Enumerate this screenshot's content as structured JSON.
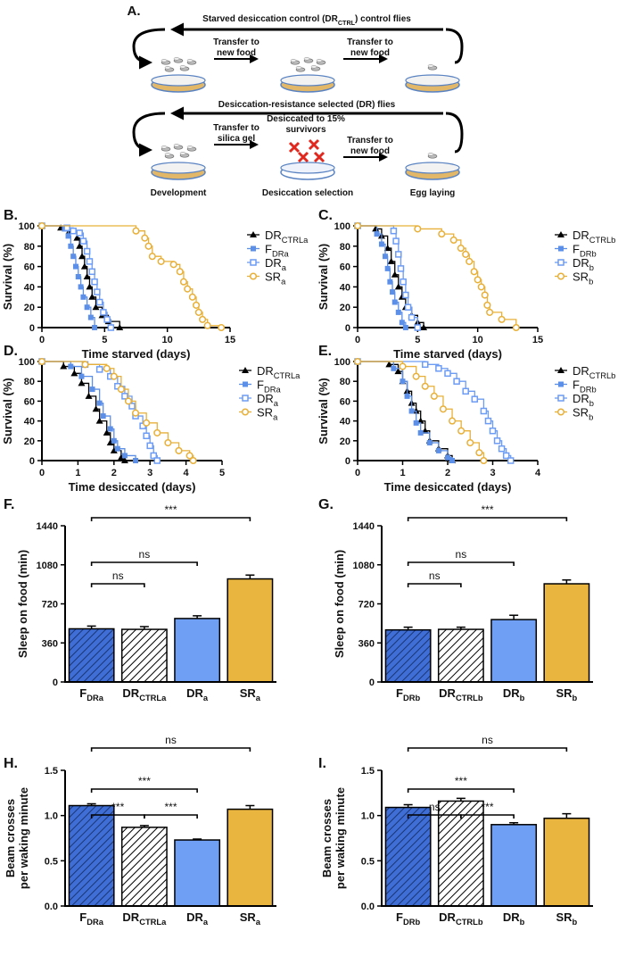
{
  "schematic": {
    "label": "A.",
    "control_title": [
      "Starved desiccation control (DR",
      "CTRL",
      ") control flies"
    ],
    "control_steps": [
      [
        "Transfer to",
        "new food"
      ],
      [
        "Transfer to",
        "new food"
      ]
    ],
    "selected_title": "Desiccation-resistance selected (DR) flies",
    "selected_steps": [
      [
        "Transfer to",
        "silica gel"
      ],
      [
        "Desiccated to 15%",
        "survivors"
      ],
      [
        "Transfer to",
        "new food"
      ]
    ],
    "stages": [
      "Development",
      "Desiccation selection",
      "Egg laying"
    ]
  },
  "chart_data": [
    {
      "type": "line",
      "step": true,
      "panel": "B.",
      "xlabel": "Time starved (days)",
      "ylabel": [
        "Survival (%)"
      ],
      "xlim": [
        0,
        15
      ],
      "xticks": [
        0,
        5,
        10,
        15
      ],
      "ylim": [
        0,
        100
      ],
      "yticks": [
        0,
        20,
        40,
        60,
        80,
        100
      ],
      "series": [
        {
          "name": "DR",
          "name_sub": "CTRLa",
          "color": "#000000",
          "marker": "triangle",
          "x": [
            0,
            1.5,
            2.2,
            2.8,
            3,
            3.2,
            3.4,
            3.6,
            3.8,
            4,
            4.3,
            4.8,
            5.3,
            6.2
          ],
          "values": [
            100,
            98,
            95,
            88,
            80,
            70,
            60,
            50,
            40,
            30,
            20,
            12,
            6,
            0
          ]
        },
        {
          "name": "F",
          "name_sub": "DRa",
          "color": "#5b8fe8",
          "marker": "square",
          "x": [
            0,
            1.8,
            2.1,
            2.3,
            2.5,
            2.7,
            2.9,
            3.1,
            3.3,
            3.6,
            3.9,
            4.2
          ],
          "values": [
            100,
            97,
            90,
            80,
            70,
            60,
            50,
            40,
            30,
            20,
            10,
            0
          ]
        },
        {
          "name": "DR",
          "name_sub": "a",
          "color": "#6d9cf4",
          "marker": "square-open",
          "x": [
            0,
            2,
            2.5,
            3,
            3.3,
            3.6,
            3.8,
            4,
            4.2,
            4.4,
            4.6,
            4.9,
            5.2,
            5.5
          ],
          "values": [
            100,
            98,
            95,
            93,
            85,
            75,
            65,
            55,
            45,
            35,
            25,
            15,
            8,
            0
          ]
        },
        {
          "name": "SR",
          "name_sub": "a",
          "color": "#e8b038",
          "marker": "circle-open",
          "x": [
            0,
            7.5,
            8.2,
            8.5,
            8.8,
            9.5,
            10.5,
            11,
            11.3,
            11.6,
            12,
            12.3,
            12.5,
            12.8,
            13.2,
            14.3
          ],
          "values": [
            100,
            95,
            88,
            80,
            70,
            65,
            62,
            55,
            45,
            38,
            30,
            22,
            15,
            8,
            2,
            0
          ]
        }
      ]
    },
    {
      "type": "line",
      "step": true,
      "panel": "C.",
      "xlabel": "Time starved (days)",
      "ylabel": [
        "Survival (%)"
      ],
      "xlim": [
        0,
        15
      ],
      "xticks": [
        0,
        5,
        10,
        15
      ],
      "ylim": [
        0,
        100
      ],
      "yticks": [
        0,
        20,
        40,
        60,
        80,
        100
      ],
      "series": [
        {
          "name": "DR",
          "name_sub": "CTRLb",
          "color": "#000000",
          "marker": "triangle",
          "x": [
            0,
            1.5,
            2,
            2.5,
            2.8,
            3.1,
            3.4,
            3.7,
            4,
            4.5,
            5,
            5.5
          ],
          "values": [
            100,
            97,
            90,
            78,
            65,
            52,
            40,
            30,
            20,
            12,
            5,
            0
          ]
        },
        {
          "name": "F",
          "name_sub": "DRb",
          "color": "#5b8fe8",
          "marker": "square",
          "x": [
            0,
            1.6,
            2,
            2.3,
            2.5,
            2.7,
            2.9,
            3.1,
            3.4,
            3.7,
            4
          ],
          "values": [
            100,
            92,
            82,
            70,
            58,
            45,
            35,
            25,
            15,
            5,
            0
          ]
        },
        {
          "name": "DR",
          "name_sub": "b",
          "color": "#6d9cf4",
          "marker": "square-open",
          "x": [
            0,
            3,
            3.2,
            3.4,
            3.6,
            3.8,
            4,
            4.2,
            4.5,
            5
          ],
          "values": [
            100,
            95,
            85,
            72,
            58,
            45,
            32,
            20,
            10,
            0
          ]
        },
        {
          "name": "SR",
          "name_sub": "b",
          "color": "#e8b038",
          "marker": "circle-open",
          "x": [
            0,
            5,
            7,
            8,
            8.6,
            9,
            9.3,
            9.7,
            10,
            10.3,
            10.6,
            10.8,
            11,
            12,
            13.2
          ],
          "values": [
            100,
            97,
            92,
            86,
            78,
            72,
            65,
            55,
            47,
            40,
            32,
            22,
            15,
            8,
            0
          ]
        }
      ]
    },
    {
      "type": "line",
      "step": true,
      "panel": "D.",
      "xlabel": "Time desiccated (days)",
      "ylabel": [
        "Survival (%)"
      ],
      "xlim": [
        0,
        5
      ],
      "xticks": [
        0,
        1,
        2,
        3,
        4,
        5
      ],
      "ylim": [
        0,
        100
      ],
      "yticks": [
        0,
        20,
        40,
        60,
        80,
        100
      ],
      "series": [
        {
          "name": "DR",
          "name_sub": "CTRLa",
          "color": "#000000",
          "marker": "triangle",
          "x": [
            0,
            0.6,
            0.9,
            1.1,
            1.3,
            1.5,
            1.6,
            1.8,
            1.9,
            2,
            2.2,
            2.3
          ],
          "values": [
            100,
            95,
            88,
            78,
            65,
            52,
            40,
            28,
            18,
            10,
            3,
            0
          ]
        },
        {
          "name": "F",
          "name_sub": "DRa",
          "color": "#5b8fe8",
          "marker": "square",
          "x": [
            0,
            0.8,
            1.1,
            1.4,
            1.6,
            1.7,
            1.9,
            2,
            2.1,
            2.3,
            2.6
          ],
          "values": [
            100,
            95,
            85,
            72,
            58,
            45,
            32,
            20,
            12,
            5,
            0
          ]
        },
        {
          "name": "DR",
          "name_sub": "a",
          "color": "#6d9cf4",
          "marker": "square-open",
          "x": [
            0,
            1.2,
            1.6,
            1.9,
            2.1,
            2.3,
            2.5,
            2.6,
            2.8,
            2.9,
            3,
            3.1,
            3.2
          ],
          "values": [
            100,
            97,
            92,
            85,
            75,
            65,
            55,
            45,
            35,
            25,
            15,
            5,
            0
          ]
        },
        {
          "name": "SR",
          "name_sub": "a",
          "color": "#e8b038",
          "marker": "circle-open",
          "x": [
            0,
            1.2,
            1.8,
            2,
            2.2,
            2.4,
            2.6,
            2.9,
            3.2,
            3.5,
            3.8,
            4.1,
            4.2
          ],
          "values": [
            100,
            97,
            93,
            85,
            72,
            60,
            48,
            38,
            28,
            18,
            10,
            5,
            0
          ]
        }
      ]
    },
    {
      "type": "line",
      "step": true,
      "panel": "E.",
      "xlabel": "Time desiccated (days)",
      "ylabel": [
        "Survival (%)"
      ],
      "xlim": [
        0,
        4
      ],
      "xticks": [
        0,
        1,
        2,
        3,
        4
      ],
      "ylim": [
        0,
        100
      ],
      "yticks": [
        0,
        20,
        40,
        60,
        80,
        100
      ],
      "series": [
        {
          "name": "DR",
          "name_sub": "CTRLb",
          "color": "#000000",
          "marker": "triangle",
          "x": [
            0,
            0.7,
            0.9,
            1,
            1.1,
            1.2,
            1.3,
            1.4,
            1.5,
            1.6,
            1.8,
            2,
            2.1
          ],
          "values": [
            100,
            97,
            90,
            80,
            70,
            58,
            50,
            40,
            30,
            20,
            12,
            5,
            0
          ]
        },
        {
          "name": "F",
          "name_sub": "DRb",
          "color": "#5b8fe8",
          "marker": "square",
          "x": [
            0,
            0.8,
            1,
            1.1,
            1.2,
            1.3,
            1.4,
            1.6,
            1.8,
            2,
            2.1
          ],
          "values": [
            100,
            93,
            80,
            65,
            50,
            38,
            28,
            18,
            10,
            3,
            0
          ]
        },
        {
          "name": "DR",
          "name_sub": "b",
          "color": "#6d9cf4",
          "marker": "square-open",
          "x": [
            0,
            1.5,
            1.8,
            2,
            2.2,
            2.4,
            2.6,
            2.8,
            2.9,
            3,
            3.1,
            3.2,
            3.3,
            3.4
          ],
          "values": [
            100,
            97,
            93,
            88,
            80,
            70,
            62,
            50,
            40,
            30,
            20,
            12,
            5,
            0
          ]
        },
        {
          "name": "SR",
          "name_sub": "b",
          "color": "#e8b038",
          "marker": "circle-open",
          "x": [
            0,
            1,
            1.3,
            1.5,
            1.7,
            1.9,
            2.1,
            2.3,
            2.5,
            2.7,
            2.8
          ],
          "values": [
            100,
            95,
            85,
            75,
            65,
            52,
            40,
            30,
            18,
            8,
            0
          ]
        }
      ]
    },
    {
      "type": "bar",
      "panel": "F.",
      "ylabel": [
        "Sleep on food (min)"
      ],
      "categories": [
        "F",
        "DR",
        "DR",
        "SR"
      ],
      "category_subs": [
        "DRa",
        "CTRLa",
        "a",
        "a"
      ],
      "values": [
        490,
        485,
        585,
        950
      ],
      "errors": [
        25,
        25,
        25,
        35
      ],
      "colors": [
        "#3f6fd6",
        "#ffffff",
        "#6f9ef5",
        "#e9b53f"
      ],
      "hatch": [
        true,
        true,
        false,
        false
      ],
      "ylim": [
        0,
        1440
      ],
      "yticks": [
        0,
        360,
        720,
        1080,
        1440
      ],
      "brackets": [
        {
          "from": 0,
          "to": 1,
          "label": "ns"
        },
        {
          "from": 0,
          "to": 2,
          "label": "ns"
        },
        {
          "from": 0,
          "to": 3,
          "label": "***"
        }
      ]
    },
    {
      "type": "bar",
      "panel": "G.",
      "ylabel": [
        "Sleep on food (min)"
      ],
      "categories": [
        "F",
        "DR",
        "DR",
        "SR"
      ],
      "category_subs": [
        "DRb",
        "CTRLb",
        "b",
        "b"
      ],
      "values": [
        480,
        485,
        575,
        905
      ],
      "errors": [
        25,
        20,
        40,
        35
      ],
      "colors": [
        "#3f6fd6",
        "#ffffff",
        "#6f9ef5",
        "#e9b53f"
      ],
      "hatch": [
        true,
        true,
        false,
        false
      ],
      "ylim": [
        0,
        1440
      ],
      "yticks": [
        0,
        360,
        720,
        1080,
        1440
      ],
      "brackets": [
        {
          "from": 0,
          "to": 1,
          "label": "ns"
        },
        {
          "from": 0,
          "to": 2,
          "label": "ns"
        },
        {
          "from": 0,
          "to": 3,
          "label": "***"
        }
      ]
    },
    {
      "type": "bar",
      "panel": "H.",
      "ylabel": [
        "Beam crosses",
        "per waking minute"
      ],
      "categories": [
        "F",
        "DR",
        "DR",
        "SR"
      ],
      "category_subs": [
        "DRa",
        "CTRLa",
        "a",
        "a"
      ],
      "values": [
        1.11,
        0.87,
        0.73,
        1.07
      ],
      "errors": [
        0.02,
        0.02,
        0.01,
        0.04
      ],
      "colors": [
        "#3f6fd6",
        "#ffffff",
        "#6f9ef5",
        "#e9b53f"
      ],
      "hatch": [
        true,
        true,
        false,
        false
      ],
      "ylim": [
        0,
        1.5
      ],
      "yticks": [
        {
          "value": 0,
          "label": "0.0"
        },
        {
          "value": 0.5,
          "label": "0.5"
        },
        {
          "value": 1,
          "label": "1.0"
        },
        {
          "value": 1.5,
          "label": "1.5"
        }
      ],
      "brackets": [
        {
          "from": 0,
          "to": 1,
          "label": "***"
        },
        {
          "from": 1,
          "to": 2,
          "label": "***"
        },
        {
          "from": 0,
          "to": 2,
          "label": "***"
        },
        {
          "from": 0,
          "to": 3,
          "label": "ns"
        }
      ]
    },
    {
      "type": "bar",
      "panel": "I.",
      "ylabel": [
        "Beam crosses",
        "per waking minute"
      ],
      "categories": [
        "F",
        "DR",
        "DR",
        "SR"
      ],
      "category_subs": [
        "DRb",
        "CTRLb",
        "b",
        "b"
      ],
      "values": [
        1.09,
        1.16,
        0.9,
        0.97
      ],
      "errors": [
        0.03,
        0.03,
        0.02,
        0.05
      ],
      "colors": [
        "#3f6fd6",
        "#ffffff",
        "#6f9ef5",
        "#e9b53f"
      ],
      "hatch": [
        true,
        true,
        false,
        false
      ],
      "ylim": [
        0,
        1.5
      ],
      "yticks": [
        {
          "value": 0,
          "label": "0.0"
        },
        {
          "value": 0.5,
          "label": "0.5"
        },
        {
          "value": 1,
          "label": "1.0"
        },
        {
          "value": 1.5,
          "label": "1.5"
        }
      ],
      "brackets": [
        {
          "from": 0,
          "to": 1,
          "label": "ns"
        },
        {
          "from": 1,
          "to": 2,
          "label": "***"
        },
        {
          "from": 0,
          "to": 2,
          "label": "***"
        },
        {
          "from": 0,
          "to": 3,
          "label": "ns"
        }
      ]
    }
  ]
}
